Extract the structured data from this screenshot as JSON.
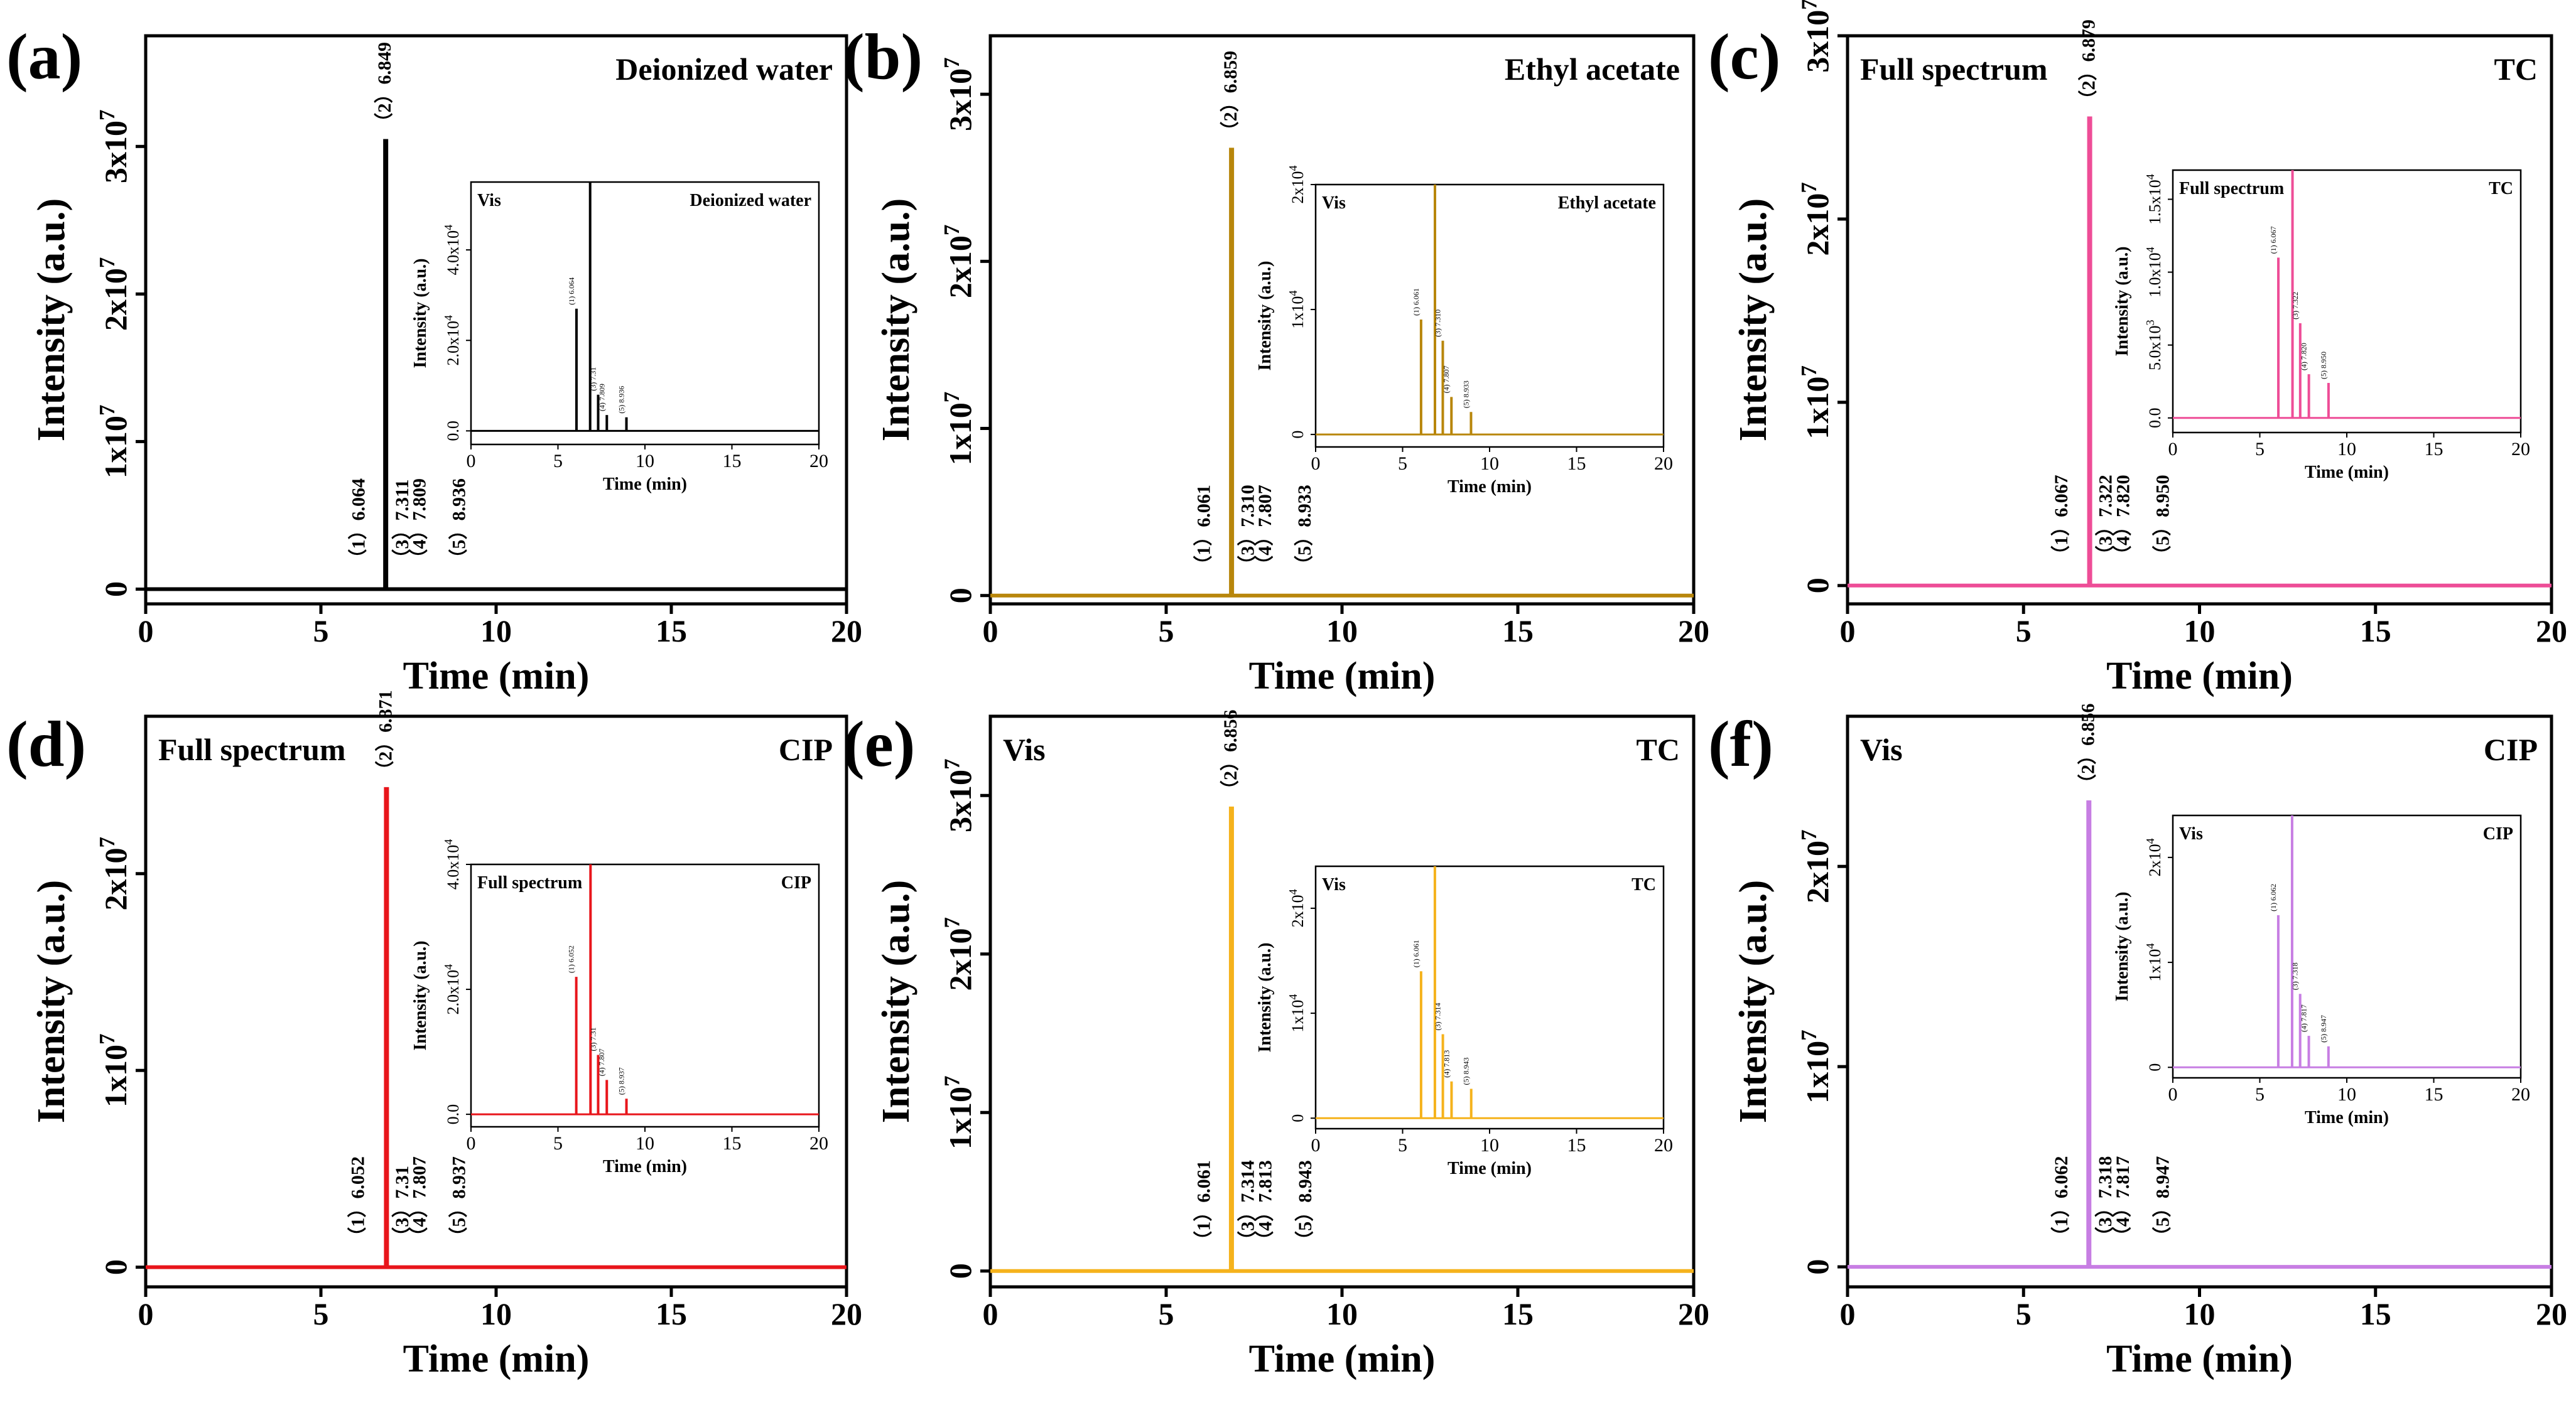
{
  "chart_data": [
    {
      "type": "line",
      "panel": "(a)",
      "color": "#000000",
      "corner_left": "",
      "corner_right": "Deionized water",
      "xlabel": "Time (min)",
      "ylabel": "Intensity (a.u.)",
      "xlim": [
        0,
        20
      ],
      "ylim": [
        -1000000,
        37500000
      ],
      "xticks": [
        0,
        5,
        10,
        15,
        20
      ],
      "yticks": [
        {
          "v": 0,
          "base": "0",
          "exp": ""
        },
        {
          "v": 10000000,
          "base": "1x10",
          "exp": "7"
        },
        {
          "v": 20000000,
          "base": "2x10",
          "exp": "7"
        },
        {
          "v": 30000000,
          "base": "3x10",
          "exp": "7"
        }
      ],
      "peaks": [
        {
          "x": 6.064,
          "y": 5000,
          "label": "（1）6.064"
        },
        {
          "x": 6.849,
          "y": 30500000,
          "label": "（2）6.849"
        },
        {
          "x": 7.311,
          "y": 3000,
          "label": "（3）7.311"
        },
        {
          "x": 7.809,
          "y": 2000,
          "label": "（4）7.809"
        },
        {
          "x": 8.936,
          "y": 1500,
          "label": "（5）8.936"
        }
      ],
      "inset": {
        "corner_left": "Vis",
        "corner_right": "Deionized water",
        "xlabel": "Time (min)",
        "ylabel": "Intensity (a.u.)",
        "xlim": [
          0,
          20
        ],
        "ylim": [
          -3000,
          55000
        ],
        "xticks": [
          0,
          5,
          10,
          15,
          20
        ],
        "yticks": [
          {
            "v": 0,
            "base": "0.0",
            "exp": ""
          },
          {
            "v": 20000,
            "base": "2.0x10",
            "exp": "4"
          },
          {
            "v": 40000,
            "base": "4.0x10",
            "exp": "4"
          }
        ],
        "peaks": [
          {
            "x": 6.064,
            "y": 27000,
            "label": "(1) 6.064"
          },
          {
            "x": 6.849,
            "y": 80000,
            "label": ""
          },
          {
            "x": 7.311,
            "y": 8000,
            "label": "(3) 7.31"
          },
          {
            "x": 7.809,
            "y": 3500,
            "label": "(4) 7.809"
          },
          {
            "x": 8.936,
            "y": 3000,
            "label": "(5) 8.936"
          }
        ]
      }
    },
    {
      "type": "line",
      "panel": "(b)",
      "color": "#b8860b",
      "corner_left": "",
      "corner_right": "Ethyl acetate",
      "xlabel": "Time (min)",
      "ylabel": "Intensity (a.u.)",
      "xlim": [
        0,
        20
      ],
      "ylim": [
        -500000,
        33500000
      ],
      "xticks": [
        0,
        5,
        10,
        15,
        20
      ],
      "yticks": [
        {
          "v": 0,
          "base": "0",
          "exp": ""
        },
        {
          "v": 10000000,
          "base": "1x10",
          "exp": "7"
        },
        {
          "v": 20000000,
          "base": "2x10",
          "exp": "7"
        },
        {
          "v": 30000000,
          "base": "3x10",
          "exp": "7"
        }
      ],
      "peaks": [
        {
          "x": 6.061,
          "y": 5000,
          "label": "（1）6.061"
        },
        {
          "x": 6.859,
          "y": 26800000,
          "label": "（2）6.859"
        },
        {
          "x": 7.31,
          "y": 3000,
          "label": "（3）7.310"
        },
        {
          "x": 7.807,
          "y": 2000,
          "label": "（4）7.807"
        },
        {
          "x": 8.933,
          "y": 1500,
          "label": "（5）8.933"
        }
      ],
      "inset": {
        "corner_left": "Vis",
        "corner_right": "Ethyl acetate",
        "xlabel": "Time (min)",
        "ylabel": "Intensity (a.u.)",
        "xlim": [
          0,
          20
        ],
        "ylim": [
          -1000,
          20000
        ],
        "xticks": [
          0,
          5,
          10,
          15,
          20
        ],
        "yticks": [
          {
            "v": 0,
            "base": "0",
            "exp": ""
          },
          {
            "v": 10000,
            "base": "1x10",
            "exp": "4"
          },
          {
            "v": 20000,
            "base": "2x10",
            "exp": "4"
          }
        ],
        "peaks": [
          {
            "x": 6.061,
            "y": 9200,
            "label": "(1) 6.061"
          },
          {
            "x": 6.859,
            "y": 40000,
            "label": ""
          },
          {
            "x": 7.31,
            "y": 7500,
            "label": "(3) 7.310"
          },
          {
            "x": 7.807,
            "y": 3000,
            "label": "(4) 7.807"
          },
          {
            "x": 8.933,
            "y": 1800,
            "label": "(5) 8.933"
          }
        ]
      }
    },
    {
      "type": "line",
      "panel": "(c)",
      "color": "#ee4d97",
      "corner_left": "Full spectrum",
      "corner_right": "TC",
      "xlabel": "Time (min)",
      "ylabel": "Intensity (a.u.)",
      "xlim": [
        0,
        20
      ],
      "ylim": [
        -1000000,
        30000000
      ],
      "xticks": [
        0,
        5,
        10,
        15,
        20
      ],
      "yticks": [
        {
          "v": 0,
          "base": "0",
          "exp": ""
        },
        {
          "v": 10000000,
          "base": "1x10",
          "exp": "7"
        },
        {
          "v": 20000000,
          "base": "2x10",
          "exp": "7"
        },
        {
          "v": 30000000,
          "base": "3x10",
          "exp": "7"
        }
      ],
      "peaks": [
        {
          "x": 6.067,
          "y": 5000,
          "label": "（1）6.067"
        },
        {
          "x": 6.879,
          "y": 25600000,
          "label": "（2）6.879"
        },
        {
          "x": 7.322,
          "y": 3000,
          "label": "（3）7.322"
        },
        {
          "x": 7.82,
          "y": 2000,
          "label": "（4）7.820"
        },
        {
          "x": 8.95,
          "y": 1500,
          "label": "（5）8.950"
        }
      ],
      "inset": {
        "corner_left": "Full spectrum",
        "corner_right": "TC",
        "xlabel": "Time (min)",
        "ylabel": "Intensity (a.u.)",
        "xlim": [
          0,
          20
        ],
        "ylim": [
          -1000,
          17000
        ],
        "xticks": [
          0,
          5,
          10,
          15,
          20
        ],
        "yticks": [
          {
            "v": 0,
            "base": "0.0",
            "exp": ""
          },
          {
            "v": 5000,
            "base": "5.0x10",
            "exp": "3"
          },
          {
            "v": 10000,
            "base": "1.0x10",
            "exp": "4"
          },
          {
            "v": 15000,
            "base": "1.5x10",
            "exp": "4"
          }
        ],
        "peaks": [
          {
            "x": 6.067,
            "y": 11000,
            "label": "(1) 6.067"
          },
          {
            "x": 6.879,
            "y": 40000,
            "label": ""
          },
          {
            "x": 7.322,
            "y": 6500,
            "label": "(3) 7.322"
          },
          {
            "x": 7.82,
            "y": 3000,
            "label": "(4) 7.820"
          },
          {
            "x": 8.95,
            "y": 2400,
            "label": "(5) 8.950"
          }
        ]
      }
    },
    {
      "type": "line",
      "panel": "(d)",
      "color": "#e8151b",
      "corner_left": "Full spectrum",
      "corner_right": "CIP",
      "xlabel": "Time (min)",
      "ylabel": "Intensity (a.u.)",
      "xlim": [
        0,
        20
      ],
      "ylim": [
        -1000000,
        28000000
      ],
      "xticks": [
        0,
        5,
        10,
        15,
        20
      ],
      "yticks": [
        {
          "v": 0,
          "base": "0",
          "exp": ""
        },
        {
          "v": 10000000,
          "base": "1x10",
          "exp": "7"
        },
        {
          "v": 20000000,
          "base": "2x10",
          "exp": "7"
        }
      ],
      "peaks": [
        {
          "x": 6.052,
          "y": 5000,
          "label": "（1）6.052"
        },
        {
          "x": 6.871,
          "y": 24400000,
          "label": "（2）6.871"
        },
        {
          "x": 7.31,
          "y": 3000,
          "label": "（3）7.31"
        },
        {
          "x": 7.807,
          "y": 2000,
          "label": "（4）7.807"
        },
        {
          "x": 8.937,
          "y": 1500,
          "label": "（5）8.937"
        }
      ],
      "inset": {
        "corner_left": "Full spectrum",
        "corner_right": "CIP",
        "xlabel": "Time (min)",
        "ylabel": "Intensity (a.u.)",
        "xlim": [
          0,
          20
        ],
        "ylim": [
          -2000,
          40000
        ],
        "xticks": [
          0,
          5,
          10,
          15,
          20
        ],
        "yticks": [
          {
            "v": 0,
            "base": "0.0",
            "exp": ""
          },
          {
            "v": 20000,
            "base": "2.0x10",
            "exp": "4"
          },
          {
            "v": 40000,
            "base": "4.0x10",
            "exp": "4"
          }
        ],
        "peaks": [
          {
            "x": 6.052,
            "y": 22000,
            "label": "(1) 6.052"
          },
          {
            "x": 6.871,
            "y": 80000,
            "label": ""
          },
          {
            "x": 7.31,
            "y": 9500,
            "label": "(3) 7.31"
          },
          {
            "x": 7.807,
            "y": 5500,
            "label": "(4) 7.807"
          },
          {
            "x": 8.937,
            "y": 2500,
            "label": "(5) 8.937"
          }
        ]
      }
    },
    {
      "type": "line",
      "panel": "(e)",
      "color": "#f5b21b",
      "corner_left": "Vis",
      "corner_right": "TC",
      "xlabel": "Time (min)",
      "ylabel": "Intensity (a.u.)",
      "xlim": [
        0,
        20
      ],
      "ylim": [
        -1000000,
        35000000
      ],
      "xticks": [
        0,
        5,
        10,
        15,
        20
      ],
      "yticks": [
        {
          "v": 0,
          "base": "0",
          "exp": ""
        },
        {
          "v": 10000000,
          "base": "1x10",
          "exp": "7"
        },
        {
          "v": 20000000,
          "base": "2x10",
          "exp": "7"
        },
        {
          "v": 30000000,
          "base": "3x10",
          "exp": "7"
        }
      ],
      "peaks": [
        {
          "x": 6.061,
          "y": 5000,
          "label": "（1）6.061"
        },
        {
          "x": 6.856,
          "y": 29300000,
          "label": "（2）6.856"
        },
        {
          "x": 7.314,
          "y": 3000,
          "label": "（3）7.314"
        },
        {
          "x": 7.813,
          "y": 2000,
          "label": "（4）7.813"
        },
        {
          "x": 8.943,
          "y": 1500,
          "label": "（5）8.943"
        }
      ],
      "inset": {
        "corner_left": "Vis",
        "corner_right": "TC",
        "xlabel": "Time (min)",
        "ylabel": "Intensity (a.u.)",
        "xlim": [
          0,
          20
        ],
        "ylim": [
          -1000,
          24000
        ],
        "xticks": [
          0,
          5,
          10,
          15,
          20
        ],
        "yticks": [
          {
            "v": 0,
            "base": "0",
            "exp": ""
          },
          {
            "v": 10000,
            "base": "1x10",
            "exp": "4"
          },
          {
            "v": 20000,
            "base": "2x10",
            "exp": "4"
          }
        ],
        "peaks": [
          {
            "x": 6.061,
            "y": 14000,
            "label": "(1) 6.061"
          },
          {
            "x": 6.856,
            "y": 40000,
            "label": ""
          },
          {
            "x": 7.314,
            "y": 8000,
            "label": "(3) 7.314"
          },
          {
            "x": 7.813,
            "y": 3500,
            "label": "(4) 7.813"
          },
          {
            "x": 8.943,
            "y": 2800,
            "label": "(5) 8.943"
          }
        ]
      }
    },
    {
      "type": "line",
      "panel": "(f)",
      "color": "#c77ee3",
      "corner_left": "Vis",
      "corner_right": "CIP",
      "xlabel": "Time (min)",
      "ylabel": "Intensity (a.u.)",
      "xlim": [
        0,
        20
      ],
      "ylim": [
        -1000000,
        27500000
      ],
      "xticks": [
        0,
        5,
        10,
        15,
        20
      ],
      "yticks": [
        {
          "v": 0,
          "base": "0",
          "exp": ""
        },
        {
          "v": 10000000,
          "base": "1x10",
          "exp": "7"
        },
        {
          "v": 20000000,
          "base": "2x10",
          "exp": "7"
        }
      ],
      "peaks": [
        {
          "x": 6.062,
          "y": 5000,
          "label": "（1）6.062"
        },
        {
          "x": 6.856,
          "y": 23300000,
          "label": "（2）6.856"
        },
        {
          "x": 7.318,
          "y": 3000,
          "label": "（3）7.318"
        },
        {
          "x": 7.817,
          "y": 2000,
          "label": "（4）7.817"
        },
        {
          "x": 8.947,
          "y": 1500,
          "label": "（5）8.947"
        }
      ],
      "inset": {
        "corner_left": "Vis",
        "corner_right": "CIP",
        "xlabel": "Time (min)",
        "ylabel": "Intensity (a.u.)",
        "xlim": [
          0,
          20
        ],
        "ylim": [
          -1000,
          24000
        ],
        "xticks": [
          0,
          5,
          10,
          15,
          20
        ],
        "yticks": [
          {
            "v": 0,
            "base": "0",
            "exp": ""
          },
          {
            "v": 10000,
            "base": "1x10",
            "exp": "4"
          },
          {
            "v": 20000,
            "base": "2x10",
            "exp": "4"
          }
        ],
        "peaks": [
          {
            "x": 6.062,
            "y": 14500,
            "label": "(1) 6.062"
          },
          {
            "x": 6.856,
            "y": 40000,
            "label": ""
          },
          {
            "x": 7.318,
            "y": 7000,
            "label": "(3) 7.318"
          },
          {
            "x": 7.817,
            "y": 3000,
            "label": "(4) 7.817"
          },
          {
            "x": 8.947,
            "y": 2000,
            "label": "(5) 8.947"
          }
        ]
      }
    }
  ]
}
